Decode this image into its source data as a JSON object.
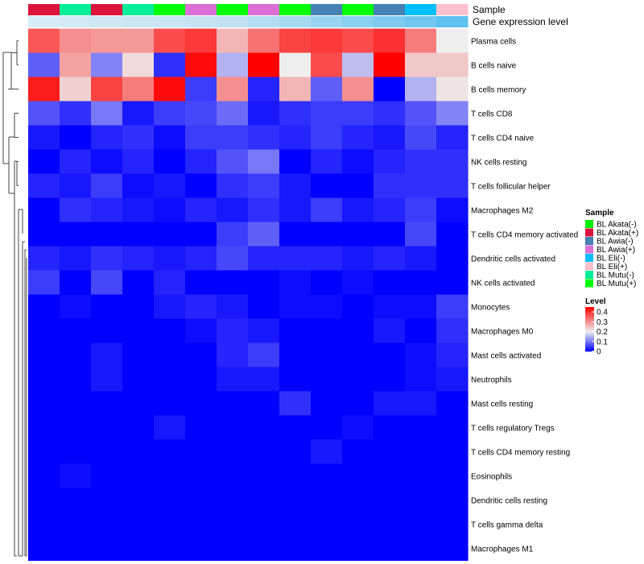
{
  "chart_data": {
    "type": "heatmap",
    "annotation_tracks": [
      "Sample",
      "Gene expression level"
    ],
    "samples": [
      "BL Akata(+)",
      "BL Mutu(-)",
      "BL Akata(+)",
      "BL Mutu(-)",
      "BL Mutu(+)",
      "BL Awia(+)",
      "BL Mutu(+)",
      "BL Awia(+)",
      "BL Mutu(+)",
      "BL Awia(-)",
      "BL Mutu(+)",
      "BL Awia(-)",
      "BL Eli(-)",
      "BL Eli(+)"
    ],
    "sample_colors": {
      "BL Akata(-)": "#00ee00",
      "BL Akata(+)": "#dc143c",
      "BL Awia(-)": "#4682b4",
      "BL Awia(+)": "#da70d6",
      "BL Eli(-)": "#00bfff",
      "BL Eli(+)": "#ffc0cb",
      "BL Mutu(-)": "#00ee99",
      "BL Mutu(+)": "#00ff00"
    },
    "expression_colors": [
      "#d6ecf5",
      "#d3eaf4",
      "#cfe8f3",
      "#cbe6f3",
      "#c7e5f2",
      "#c3e3f2",
      "#bfe1f1",
      "#b3ddf1",
      "#a7d9f1",
      "#98d4f0",
      "#8bd0f0",
      "#7dcbef",
      "#6fc6ef",
      "#5ec1ef"
    ],
    "rows": [
      "Plasma cells",
      "B cells naive",
      "B cells memory",
      "T cells CD8",
      "T cells CD4 naive",
      "NK cells resting",
      "T cells follicular helper",
      "Macrophages M2",
      "T cells CD4 memory activated",
      "Dendritic cells activated",
      "NK cells activated",
      "Monocytes",
      "Macrophages M0",
      "Mast cells activated",
      "Neutrophils",
      "Mast cells resting",
      "T cells regulatory  Tregs",
      "T cells CD4 memory resting",
      "Eosinophils",
      "Dendritic cells resting",
      "T cells gamma delta",
      "Macrophages M1"
    ],
    "values": [
      [
        0.36,
        0.3,
        0.29,
        0.29,
        0.37,
        0.39,
        0.26,
        0.33,
        0.38,
        0.39,
        0.37,
        0.4,
        0.32,
        0.2
      ],
      [
        0.08,
        0.28,
        0.11,
        0.22,
        0.04,
        0.44,
        0.15,
        0.45,
        0.2,
        0.37,
        0.16,
        0.45,
        0.24,
        0.24
      ],
      [
        0.42,
        0.23,
        0.38,
        0.32,
        0.44,
        0.05,
        0.3,
        0.03,
        0.26,
        0.08,
        0.3,
        0.0,
        0.15,
        0.21
      ],
      [
        0.07,
        0.04,
        0.1,
        0.02,
        0.05,
        0.06,
        0.09,
        0.02,
        0.04,
        0.05,
        0.05,
        0.04,
        0.07,
        0.11
      ],
      [
        0.02,
        0.0,
        0.03,
        0.04,
        0.01,
        0.05,
        0.05,
        0.04,
        0.03,
        0.05,
        0.03,
        0.02,
        0.06,
        0.03
      ],
      [
        0.0,
        0.03,
        0.01,
        0.03,
        0.0,
        0.03,
        0.07,
        0.1,
        0.0,
        0.03,
        0.01,
        0.03,
        0.04,
        0.04
      ],
      [
        0.03,
        0.02,
        0.05,
        0.01,
        0.02,
        0.0,
        0.04,
        0.05,
        0.02,
        0.0,
        0.0,
        0.04,
        0.04,
        0.04
      ],
      [
        0.0,
        0.04,
        0.03,
        0.02,
        0.01,
        0.03,
        0.02,
        0.04,
        0.02,
        0.05,
        0.02,
        0.03,
        0.05,
        0.01
      ],
      [
        0.0,
        0.0,
        0.0,
        0.0,
        0.0,
        0.0,
        0.05,
        0.08,
        0.0,
        0.0,
        0.0,
        0.0,
        0.06,
        0.0
      ],
      [
        0.03,
        0.02,
        0.04,
        0.03,
        0.02,
        0.03,
        0.06,
        0.03,
        0.03,
        0.03,
        0.02,
        0.03,
        0.02,
        0.0
      ],
      [
        0.05,
        0.0,
        0.06,
        0.0,
        0.03,
        0.0,
        0.0,
        0.0,
        0.01,
        0.0,
        0.01,
        0.0,
        0.0,
        0.0
      ],
      [
        0.0,
        0.01,
        0.0,
        0.0,
        0.02,
        0.03,
        0.02,
        0.0,
        0.01,
        0.01,
        0.0,
        0.01,
        0.01,
        0.05
      ],
      [
        0.0,
        0.0,
        0.0,
        0.0,
        0.0,
        0.01,
        0.03,
        0.02,
        0.0,
        0.0,
        0.0,
        0.02,
        0.0,
        0.04
      ],
      [
        0.0,
        0.0,
        0.02,
        0.0,
        0.0,
        0.0,
        0.03,
        0.05,
        0.0,
        0.0,
        0.0,
        0.0,
        0.01,
        0.03
      ],
      [
        0.0,
        0.0,
        0.02,
        0.0,
        0.0,
        0.0,
        0.02,
        0.02,
        0.0,
        0.0,
        0.0,
        0.0,
        0.01,
        0.02
      ],
      [
        0.0,
        0.0,
        0.0,
        0.0,
        0.0,
        0.0,
        0.0,
        0.0,
        0.04,
        0.0,
        0.0,
        0.02,
        0.02,
        0.0
      ],
      [
        0.0,
        0.0,
        0.0,
        0.0,
        0.02,
        0.0,
        0.0,
        0.0,
        0.0,
        0.0,
        0.01,
        0.0,
        0.0,
        0.0
      ],
      [
        0.0,
        0.0,
        0.0,
        0.0,
        0.0,
        0.0,
        0.0,
        0.0,
        0.0,
        0.02,
        0.0,
        0.0,
        0.0,
        0.0
      ],
      [
        0.0,
        0.01,
        0.0,
        0.0,
        0.0,
        0.0,
        0.0,
        0.0,
        0.0,
        0.0,
        0.0,
        0.0,
        0.0,
        0.0
      ],
      [
        0.0,
        0.0,
        0.0,
        0.0,
        0.0,
        0.0,
        0.0,
        0.0,
        0.0,
        0.0,
        0.0,
        0.0,
        0.0,
        0.0
      ],
      [
        0.0,
        0.0,
        0.0,
        0.0,
        0.0,
        0.0,
        0.0,
        0.0,
        0.0,
        0.0,
        0.0,
        0.0,
        0.0,
        0.0
      ],
      [
        0.0,
        0.0,
        0.0,
        0.0,
        0.0,
        0.0,
        0.0,
        0.0,
        0.0,
        0.0,
        0.0,
        0.0,
        0.0,
        0.0
      ]
    ],
    "color_scale": {
      "min": 0,
      "max": 0.45,
      "stops": [
        {
          "value": 0,
          "color": "#0000ff"
        },
        {
          "value": 0.2,
          "color": "#eeeeee"
        },
        {
          "value": 0.45,
          "color": "#ff0000"
        }
      ]
    },
    "legend": {
      "sample_title": "Sample",
      "sample_entries": [
        "BL Akata(-)",
        "BL Akata(+)",
        "BL Awia(-)",
        "BL Awia(+)",
        "BL Eli(-)",
        "BL Eli(+)",
        "BL Mutu(-)",
        "BL Mutu(+)"
      ],
      "level_title": "Level",
      "level_ticks": [
        {
          "value": 0.4,
          "label": "0.4"
        },
        {
          "value": 0.3,
          "label": "0.3"
        },
        {
          "value": 0.2,
          "label": "0.2"
        },
        {
          "value": 0.1,
          "label": "0.1"
        },
        {
          "value": 0,
          "label": "0"
        }
      ]
    },
    "dendrogram": "rows"
  }
}
